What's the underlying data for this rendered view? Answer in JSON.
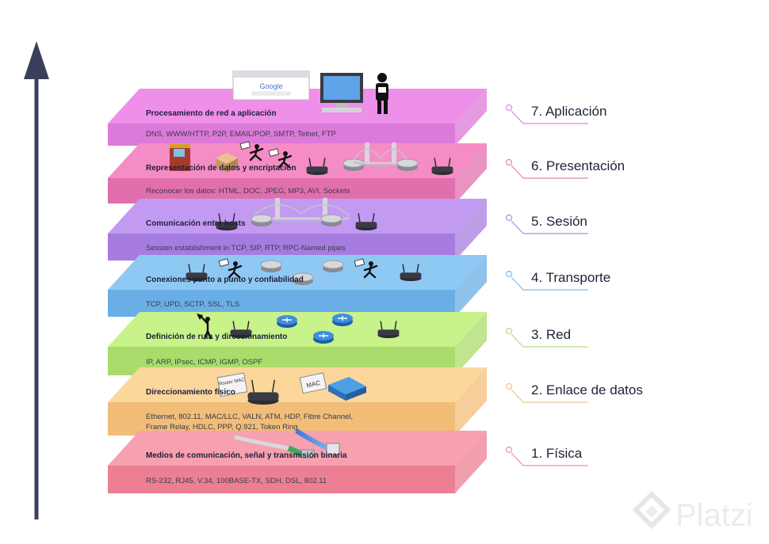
{
  "colors": {
    "arrow": "#3a3f5c",
    "brand": "#e6e6e6"
  },
  "layers": [
    {
      "label": "7. Aplicación",
      "title": "Procesamiento de red a aplicación",
      "protocols": [
        "DNS, WWW/HTTP, P2P, EMAIL/POP, SMTP, Telnet, FTP"
      ],
      "colors": {
        "top": "#ee8fea",
        "front": "#db7ad8",
        "line": "#d48ad2"
      },
      "icons": [
        "browser-window-icon",
        "computer-icon",
        "person-icon"
      ]
    },
    {
      "label": "6. Presentación",
      "title": "Representación de datos y encriptación",
      "protocols": [
        "Reconocer los datos: HTML, DOC, JPEG, MP3, AVI, Sockets"
      ],
      "colors": {
        "top": "#f58cc5",
        "front": "#e16fae",
        "line": "#e082b8"
      },
      "icons": [
        "atm-icon",
        "package-icon",
        "running-person-icon",
        "router-icon",
        "bridge-icon"
      ]
    },
    {
      "label": "5. Sesión",
      "title": "Comunicación entre hosts",
      "protocols": [
        "Session establishment in TCP, SIP, RTP, RPC-Named pipes"
      ],
      "colors": {
        "top": "#c39af2",
        "front": "#a77ce0",
        "line": "#b08ce0"
      },
      "icons": [
        "router-icon",
        "bridge-icon"
      ]
    },
    {
      "label": "4. Transporte",
      "title": "Conexiones punto a punto y confiabilidad",
      "protocols": [
        "TCP, UPD, SCTP, SSL, TLS"
      ],
      "colors": {
        "top": "#8ec9f4",
        "front": "#6aaee6",
        "line": "#7fb9e8"
      },
      "icons": [
        "router-icon",
        "running-person-icon",
        "cloud-router-icon"
      ]
    },
    {
      "label": "3. Red",
      "title": "Definición de ruta y direccionamiento",
      "protocols": [
        "IP, ARP, IPsec, ICMP, IGMP, OSPF"
      ],
      "colors": {
        "top": "#c8f28a",
        "front": "#a9dc6a",
        "line": "#b3dd86"
      },
      "icons": [
        "signpost-person-icon",
        "wifi-router-icon",
        "blue-router-icon"
      ]
    },
    {
      "label": "2. Enlace de datos",
      "title": "Direccionamiento físico",
      "protocols": [
        "Ethernet, 802.11, MAC/LLC, VALN, ATM, HDP, Fibre Channel,",
        "Frame Relay, HDLC, PPP, Q.921, Token Ring"
      ],
      "tags": [
        "Router MAC",
        "MAC"
      ],
      "colors": {
        "top": "#fbd79c",
        "front": "#f1bd78",
        "line": "#eec58e"
      },
      "icons": [
        "tag-icon",
        "router-icon",
        "switch-icon"
      ]
    },
    {
      "label": "1. Física",
      "title": "Medios de comunicación, señal y transmisión binaria",
      "protocols": [
        "RS-232, RJ45, V.34, 100BASE-TX, SDH, DSL, 802.11"
      ],
      "colors": {
        "top": "#f7a0b0",
        "front": "#ec7f93",
        "line": "#ea92a3"
      },
      "icons": [
        "ethernet-cable-icon"
      ]
    }
  ],
  "browser": {
    "logo": "Google"
  },
  "brand": {
    "name": "Platzi",
    "icon": "platzi-logo-icon"
  }
}
